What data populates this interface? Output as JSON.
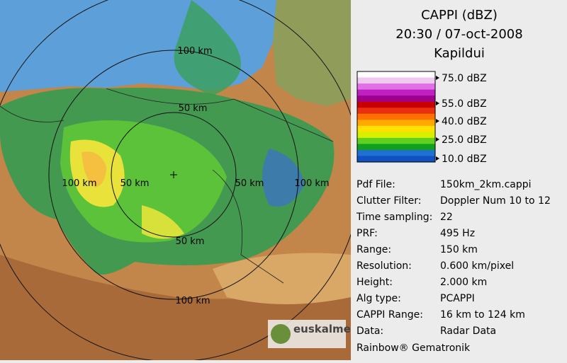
{
  "map": {
    "ring_labels": [
      "100 km",
      "50 km",
      "100 km",
      "50 km",
      "50 km",
      "100 km",
      "50 km",
      "100 km"
    ],
    "logo": "euskalmet"
  },
  "panel": {
    "title": "CAPPI (dBZ)",
    "time": "20:30 / 07-oct-2008",
    "site": "Kapildui",
    "scale_labels": [
      "75.0 dBZ",
      "55.0 dBZ",
      "40.0 dBZ",
      "25.0 dBZ",
      "10.0 dBZ"
    ],
    "params": [
      [
        "Pdf File:",
        "150km_2km.cappi"
      ],
      [
        "Clutter Filter:",
        "Doppler Num 10 to 12"
      ],
      [
        "Time sampling:",
        "22"
      ],
      [
        "PRF:",
        "495 Hz"
      ],
      [
        "Range:",
        "150 km"
      ],
      [
        "Resolution:",
        "0.600 km/pixel"
      ],
      [
        "Height:",
        "2.000 km"
      ],
      [
        "Alg type:",
        "PCAPPI"
      ],
      [
        "CAPPI Range:",
        "16 km to 124 km"
      ],
      [
        "Data:",
        "Radar Data"
      ]
    ],
    "footer": "Rainbow® Gematronik"
  }
}
